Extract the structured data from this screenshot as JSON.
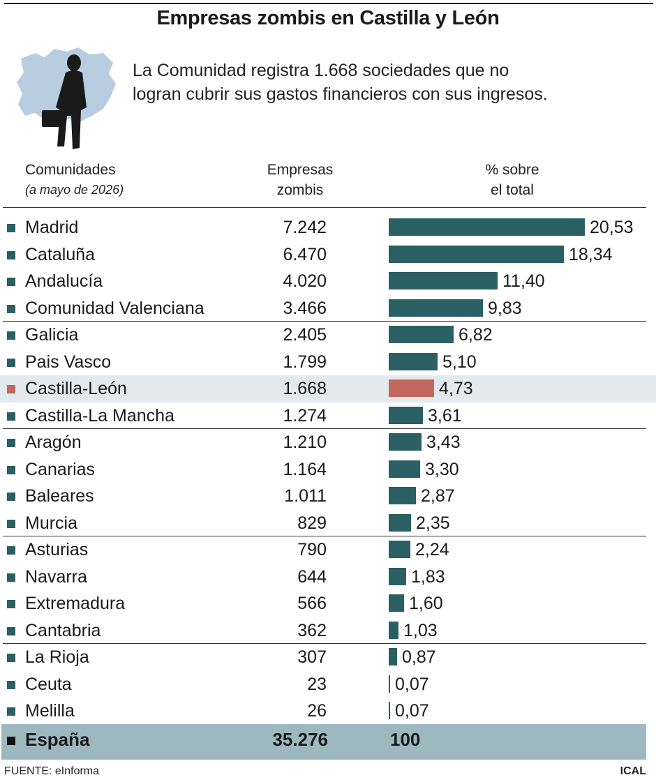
{
  "header": {
    "title": "Empresas zombis en Castilla y León",
    "subtitle_line1": "La Comunidad registra 1.668 sociedades que no",
    "subtitle_line2": "logran cubrir sus gastos financieros con sus ingresos."
  },
  "columns": {
    "comunidades": "Comunidades",
    "comunidades_note": "(a mayo de 2026)",
    "empresas_line1": "Empresas",
    "empresas_line2": "zombis",
    "pct_line1": "% sobre",
    "pct_line2": "el total"
  },
  "colors": {
    "bar": "#2a5f63",
    "highlight_bar": "#c2675d",
    "highlight_row": "#e3eaee",
    "total_row": "#9eb8c0"
  },
  "chart_data": {
    "type": "bar",
    "orientation": "horizontal",
    "categories": [
      "Madrid",
      "Cataluña",
      "Andalucía",
      "Comunidad Valenciana",
      "Galicia",
      "Pais Vasco",
      "Castilla-León",
      "Castilla-La Mancha",
      "Aragón",
      "Canarias",
      "Baleares",
      "Murcia",
      "Asturias",
      "Navarra",
      "Extremadura",
      "Cantabria",
      "La Rioja",
      "Ceuta",
      "Melilla"
    ],
    "empresas_labels": [
      "7.242",
      "6.470",
      "4.020",
      "3.466",
      "2.405",
      "1.799",
      "1.668",
      "1.274",
      "1.210",
      "1.164",
      "1.011",
      "829",
      "790",
      "644",
      "566",
      "362",
      "307",
      "23",
      "26"
    ],
    "values": [
      20.53,
      18.34,
      11.4,
      9.83,
      6.82,
      5.1,
      4.73,
      3.61,
      3.43,
      3.3,
      2.87,
      2.35,
      2.24,
      1.83,
      1.6,
      1.03,
      0.87,
      0.07,
      0.07
    ],
    "value_labels": [
      "20,53",
      "18,34",
      "11,40",
      "9,83",
      "6,82",
      "5,10",
      "4,73",
      "3,61",
      "3,43",
      "3,30",
      "2,87",
      "2,35",
      "2,24",
      "1,83",
      "1,60",
      "1,03",
      "0,87",
      "0,07",
      "0,07"
    ],
    "highlight": "Castilla-León",
    "xlim": [
      0,
      20.53
    ],
    "total": {
      "label": "España",
      "empresas": "35.276",
      "pct": "100"
    }
  },
  "footer": {
    "source": "FUENTE: eInforma",
    "brand": "ICAL"
  }
}
